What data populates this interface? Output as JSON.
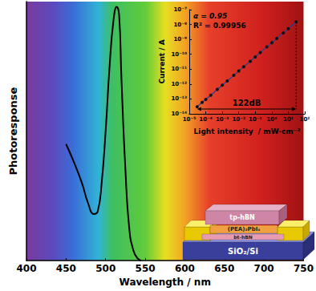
{
  "chart_data": [
    {
      "type": "line",
      "xlabel": "Wavelength / nm",
      "ylabel": "Photoresponse",
      "x": [
        450,
        460,
        470,
        478,
        485,
        490,
        495,
        500,
        505,
        510,
        514,
        517,
        520,
        525,
        530,
        535,
        540,
        545
      ],
      "values": [
        0.45,
        0.38,
        0.3,
        0.22,
        0.18,
        0.19,
        0.3,
        0.5,
        0.75,
        0.93,
        0.98,
        0.95,
        0.7,
        0.35,
        0.12,
        0.04,
        0.01,
        0.0
      ],
      "color": "#000000",
      "line_style": "solid",
      "xlim": [
        400,
        750
      ],
      "xticks": [
        400,
        450,
        500,
        550,
        600,
        650,
        700,
        750
      ],
      "ylim": [
        0,
        1
      ],
      "tick_labels": "x"
    },
    {
      "type": "line",
      "xlabel": "Light intensity  / mW·cm⁻²",
      "ylabel": "Current / A",
      "x": [
        3e-05,
        6e-05,
        0.0001,
        0.0002,
        0.0005,
        0.001,
        0.002,
        0.005,
        0.01,
        0.02,
        0.05,
        0.1,
        0.2,
        0.5,
        1,
        2,
        5,
        10,
        30
      ],
      "values": [
        3e-14,
        5.8e-14,
        9.4e-14,
        1.8e-13,
        4.4e-13,
        8.4e-13,
        1.6e-12,
        3.9e-12,
        7.5e-12,
        1.45e-11,
        3.4e-11,
        6.6e-11,
        1.3e-10,
        3.1e-10,
        6e-10,
        1.15e-09,
        2.7e-09,
        5.3e-09,
        1.5e-08
      ],
      "color": "#2040a0",
      "marker": "circle",
      "log": true,
      "xlim": [
        1e-05,
        100
      ],
      "xticks": [
        {
          "value": 1e-05,
          "label": "10⁻⁵"
        },
        {
          "value": 0.0001,
          "label": "10⁻⁴"
        },
        {
          "value": 0.001,
          "label": "10⁻³"
        },
        {
          "value": 0.01,
          "label": "10⁻²"
        },
        {
          "value": 0.1,
          "label": "10⁻¹"
        },
        {
          "value": 1,
          "label": "10⁰"
        },
        {
          "value": 10,
          "label": "10¹"
        },
        {
          "value": 100,
          "label": "10²"
        }
      ],
      "ylim": [
        1e-14,
        1e-07
      ],
      "yticks": [
        {
          "value": 1e-14,
          "label": "10⁻¹⁴"
        },
        {
          "value": 1e-13,
          "label": "10⁻¹³"
        },
        {
          "value": 1e-12,
          "label": "10⁻¹²"
        },
        {
          "value": 1e-11,
          "label": "10⁻¹¹"
        },
        {
          "value": 1e-10,
          "label": "10⁻¹⁰"
        },
        {
          "value": 1e-09,
          "label": "10⁻⁹"
        },
        {
          "value": 1e-08,
          "label": "10⁻⁸"
        },
        {
          "value": 1e-07,
          "label": "10⁻⁷"
        }
      ],
      "annotations": [
        "α = 0.95",
        "R² = 0.99956",
        "122dB"
      ]
    }
  ],
  "device_schematic": {
    "layers": [
      "tp-hBN",
      "(PEA)₂PbI₄",
      "bt-hBN",
      "SiO₂/Si"
    ]
  }
}
